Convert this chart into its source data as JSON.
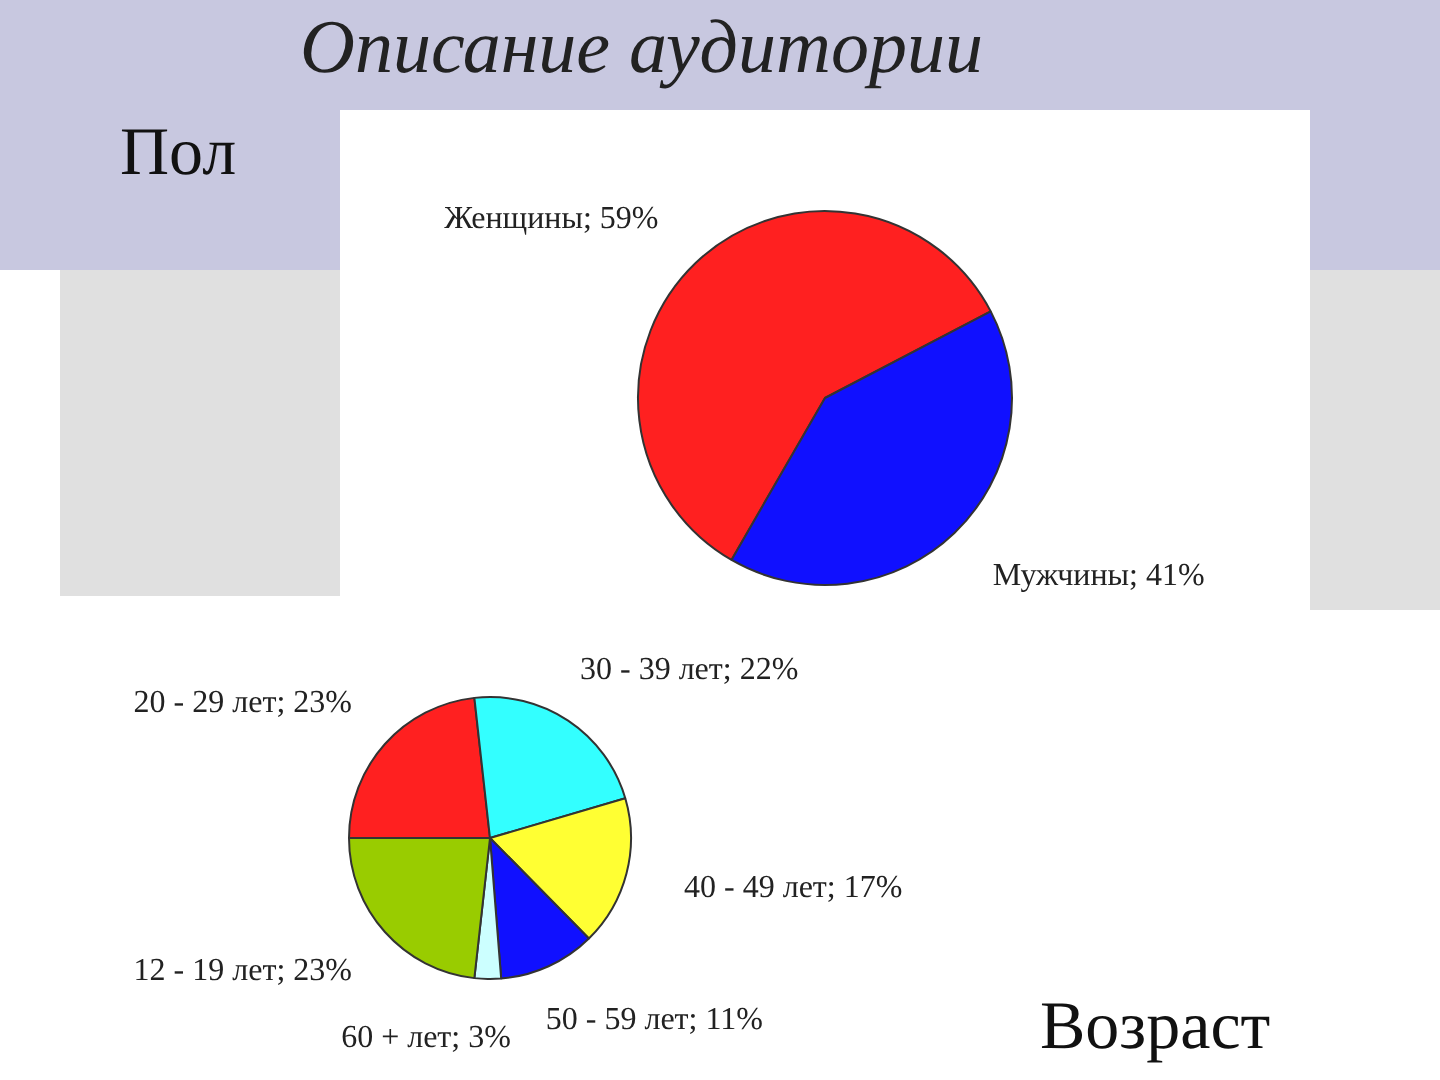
{
  "chart_data": [
    {
      "type": "pie",
      "title": "Описание аудитории",
      "subtitle": "Пол",
      "categories": [
        "Женщины",
        "Мужчины"
      ],
      "values": [
        59,
        41
      ],
      "value_labels": [
        "59%",
        "41%"
      ],
      "colors": [
        "#ff2020",
        "#1010ff"
      ],
      "legend": false
    },
    {
      "type": "pie",
      "title": "Возраст",
      "categories": [
        "20 - 29 лет",
        "30 - 39 лет",
        "40 - 49 лет",
        "50 - 59 лет",
        "60 + лет",
        "12 - 19 лет"
      ],
      "values": [
        23,
        22,
        17,
        11,
        3,
        23
      ],
      "value_labels": [
        "23%",
        "22%",
        "17%",
        "11%",
        "3%",
        "23%"
      ],
      "colors": [
        "#ff2020",
        "#33ffff",
        "#ffff33",
        "#1010ff",
        "#ccffff",
        "#99cc00"
      ],
      "legend": false
    }
  ]
}
